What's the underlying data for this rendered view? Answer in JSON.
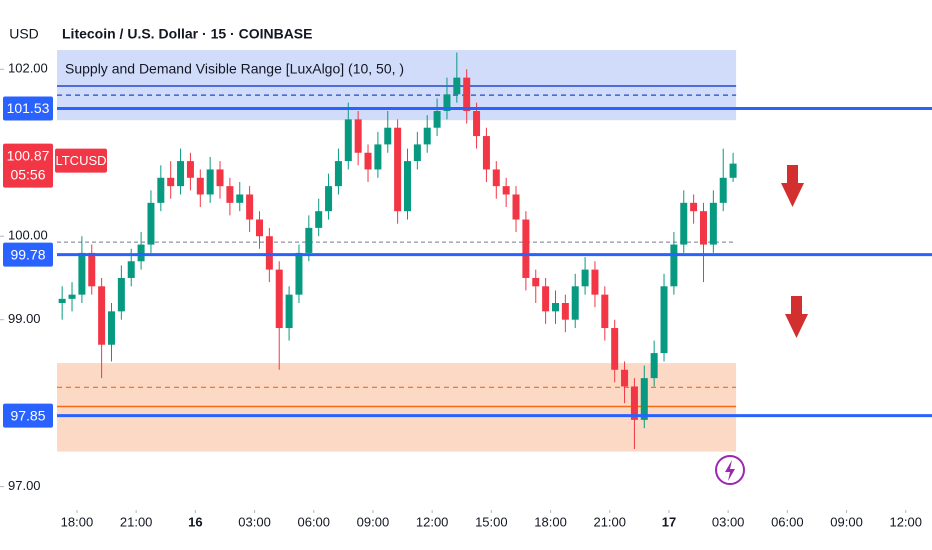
{
  "chart_data": {
    "type": "candlestick",
    "title": "Litecoin / U.S. Dollar · 15 · COINBASE",
    "currency": "USD",
    "indicator": "Supply and Demand Visible Range [LuxAlgo] (10, 50, )",
    "symbol": "LTCUSD",
    "last_price": 100.87,
    "countdown": "05:56",
    "xlim": [
      -3.9,
      43.33
    ],
    "ylim": [
      96.78,
      102.83
    ],
    "xticks": [
      {
        "value": 0,
        "label": "18:00"
      },
      {
        "value": 3,
        "label": "21:00"
      },
      {
        "value": 6,
        "label": "16"
      },
      {
        "value": 9,
        "label": "03:00"
      },
      {
        "value": 12,
        "label": "06:00"
      },
      {
        "value": 15,
        "label": "09:00"
      },
      {
        "value": 18,
        "label": "12:00"
      },
      {
        "value": 21,
        "label": "15:00"
      },
      {
        "value": 24,
        "label": "18:00"
      },
      {
        "value": 27,
        "label": "21:00"
      },
      {
        "value": 30,
        "label": "17"
      },
      {
        "value": 33,
        "label": "03:00"
      },
      {
        "value": 36,
        "label": "06:00"
      },
      {
        "value": 39,
        "label": "09:00"
      },
      {
        "value": 42,
        "label": "12:00"
      }
    ],
    "yticks": [
      {
        "value": 97,
        "label": "97.00"
      },
      {
        "value": 99,
        "label": "99.00"
      },
      {
        "value": 100,
        "label": "100.00"
      },
      {
        "value": 102,
        "label": "102.00"
      }
    ],
    "up_color": "#089981",
    "down_color": "#f23645",
    "levels": [
      101.53,
      99.78,
      97.85
    ],
    "level_color": "#2962ff",
    "dashed_level": 99.93,
    "zones": [
      {
        "top": 102.23,
        "bottom": 101.39,
        "average": 101.69,
        "weighted": 101.8,
        "fill": "#d1dcfb",
        "line": "#2448c8"
      },
      {
        "top": 98.48,
        "bottom": 97.42,
        "average": 98.19,
        "weighted": 97.96,
        "fill": "#fcd9c4",
        "line": "#f36b16"
      }
    ],
    "x": [
      -0.75,
      -0.25,
      0.25,
      0.75,
      1.25,
      1.75,
      2.25,
      2.75,
      3.25,
      3.75,
      4.25,
      4.75,
      5.25,
      5.75,
      6.25,
      6.75,
      7.25,
      7.75,
      8.25,
      8.75,
      9.25,
      9.75,
      10.25,
      10.75,
      11.25,
      11.75,
      12.25,
      12.75,
      13.25,
      13.75,
      14.25,
      14.75,
      15.25,
      15.75,
      16.25,
      16.75,
      17.25,
      17.75,
      18.25,
      18.75,
      19.25,
      19.75,
      20.25,
      20.75,
      21.25,
      21.75,
      22.25,
      22.75,
      23.25,
      23.75,
      24.25,
      24.75,
      25.25,
      25.75,
      26.25,
      26.75,
      27.25,
      27.75,
      28.25,
      28.75,
      29.25,
      29.75,
      30.25,
      30.75,
      31.25,
      31.75,
      32.25,
      32.75,
      33.25
    ],
    "open": [
      99.2,
      99.25,
      99.3,
      99.8,
      99.4,
      98.7,
      99.1,
      99.5,
      99.7,
      99.9,
      100.4,
      100.7,
      100.6,
      100.9,
      100.7,
      100.5,
      100.8,
      100.6,
      100.4,
      100.5,
      100.2,
      100.0,
      99.6,
      98.9,
      99.3,
      99.8,
      100.1,
      100.3,
      100.6,
      100.9,
      101.4,
      101.0,
      100.8,
      101.1,
      101.3,
      100.3,
      100.9,
      101.1,
      101.3,
      101.5,
      101.7,
      101.9,
      101.5,
      101.2,
      100.8,
      100.6,
      100.5,
      100.2,
      99.5,
      99.4,
      99.1,
      99.2,
      99.0,
      99.4,
      99.6,
      99.3,
      98.9,
      98.4,
      98.2,
      97.8,
      98.3,
      98.6,
      99.4,
      99.9,
      100.4,
      100.3,
      99.9,
      100.4,
      100.7
    ],
    "high": [
      99.4,
      99.45,
      100.0,
      99.9,
      99.5,
      99.2,
      99.65,
      99.85,
      100.05,
      100.55,
      100.85,
      100.9,
      101.05,
      101.0,
      100.8,
      100.95,
      100.9,
      100.7,
      100.65,
      100.6,
      100.3,
      100.1,
      99.7,
      99.4,
      99.9,
      100.25,
      100.45,
      100.75,
      101.05,
      101.6,
      101.5,
      101.1,
      101.25,
      101.5,
      101.4,
      101.05,
      101.25,
      101.45,
      101.65,
      101.9,
      102.2,
      102.0,
      101.6,
      101.3,
      100.9,
      100.7,
      100.6,
      100.3,
      99.6,
      99.5,
      99.35,
      99.3,
      99.55,
      99.75,
      99.7,
      99.4,
      99.0,
      98.5,
      98.3,
      98.45,
      98.75,
      99.55,
      100.05,
      100.55,
      100.5,
      100.4,
      100.55,
      101.05,
      101.0
    ],
    "low": [
      99.0,
      99.1,
      99.2,
      99.3,
      98.3,
      98.5,
      99.0,
      99.4,
      99.6,
      99.8,
      100.3,
      100.45,
      100.5,
      100.55,
      100.35,
      100.4,
      100.45,
      100.25,
      100.3,
      100.05,
      99.85,
      99.45,
      98.4,
      98.75,
      99.2,
      99.7,
      100.0,
      100.2,
      100.5,
      100.8,
      100.85,
      100.65,
      100.7,
      101.0,
      100.15,
      100.2,
      100.8,
      101.0,
      101.2,
      101.4,
      101.6,
      101.35,
      101.05,
      100.65,
      100.45,
      100.35,
      100.05,
      99.35,
      99.2,
      98.95,
      98.95,
      98.85,
      98.9,
      99.3,
      99.15,
      98.75,
      98.25,
      98.0,
      97.45,
      97.7,
      98.2,
      98.5,
      99.3,
      99.8,
      100.15,
      99.45,
      99.8,
      100.3,
      100.65
    ],
    "close": [
      99.25,
      99.3,
      99.8,
      99.4,
      98.7,
      99.1,
      99.5,
      99.7,
      99.9,
      100.4,
      100.7,
      100.6,
      100.9,
      100.7,
      100.5,
      100.8,
      100.6,
      100.4,
      100.5,
      100.2,
      100.0,
      99.6,
      98.9,
      99.3,
      99.8,
      100.1,
      100.3,
      100.6,
      100.9,
      101.4,
      101.0,
      100.8,
      101.1,
      101.3,
      100.3,
      100.9,
      101.1,
      101.3,
      101.5,
      101.7,
      101.9,
      101.5,
      101.2,
      100.8,
      100.6,
      100.5,
      100.2,
      99.5,
      99.4,
      99.1,
      99.2,
      99.0,
      99.4,
      99.6,
      99.3,
      98.9,
      98.4,
      98.2,
      97.8,
      98.3,
      98.6,
      99.4,
      99.9,
      100.4,
      100.3,
      99.9,
      100.4,
      100.7,
      100.87
    ]
  }
}
